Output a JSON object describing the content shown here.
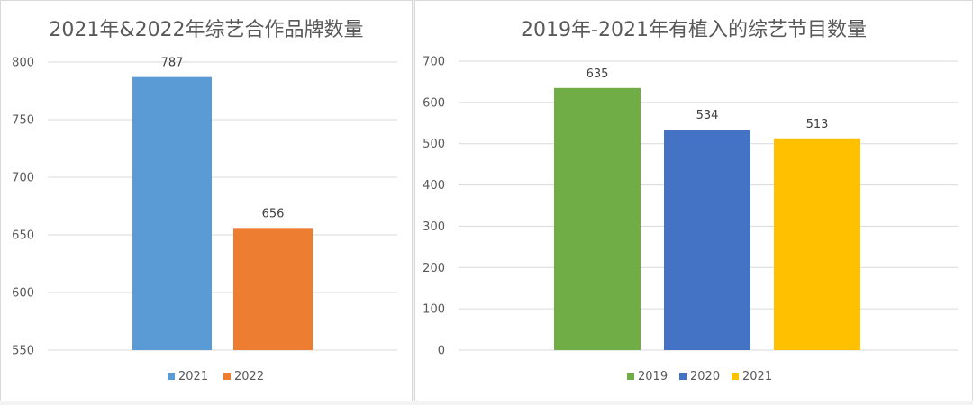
{
  "chart_data": [
    {
      "type": "bar",
      "title": "2021年&2022年综艺合作品牌数量",
      "categories": [
        "2021",
        "2022"
      ],
      "values": [
        787,
        656
      ],
      "colors": [
        "#5b9bd5",
        "#ed7d31"
      ],
      "legend": [
        "2021",
        "2022"
      ],
      "ylim": [
        550,
        800
      ],
      "yticks": [
        550,
        600,
        650,
        700,
        750,
        800
      ],
      "grid": true,
      "legend_position": "bottom"
    },
    {
      "type": "bar",
      "title": "2019年-2021年有植入的综艺节目数量",
      "categories": [
        "2019",
        "2020",
        "2021"
      ],
      "values": [
        635,
        534,
        513
      ],
      "colors": [
        "#70ad47",
        "#4472c4",
        "#ffc000"
      ],
      "legend": [
        "2019",
        "2020",
        "2021"
      ],
      "ylim": [
        0,
        700
      ],
      "yticks": [
        0,
        100,
        200,
        300,
        400,
        500,
        600,
        700
      ],
      "grid": true,
      "legend_position": "bottom"
    }
  ]
}
